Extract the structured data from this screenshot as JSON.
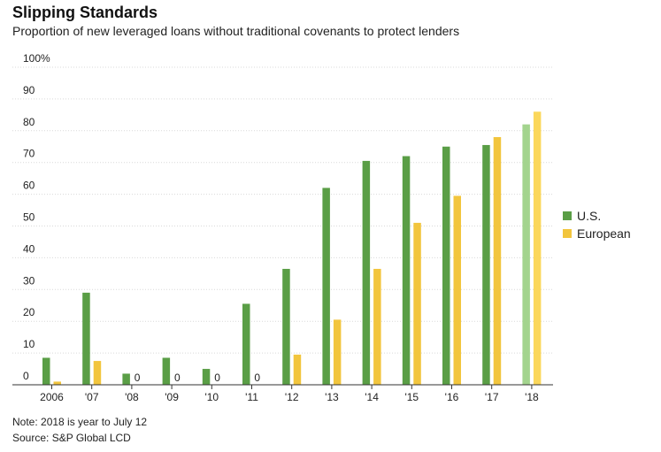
{
  "header": {
    "title": "Slipping Standards",
    "subtitle": "Proportion of new leveraged loans without traditional covenants to protect lenders"
  },
  "footer": {
    "note": "Note: 2018 is year to July 12",
    "source": "Source: S&P Global LCD"
  },
  "chart_data": {
    "type": "bar",
    "categories": [
      "2006",
      "'07",
      "'08",
      "'09",
      "'10",
      "'11",
      "'12",
      "'13",
      "'14",
      "'15",
      "'16",
      "'17",
      "'18"
    ],
    "series": [
      {
        "name": "U.S.",
        "color": "#5a9e46",
        "values": [
          8.5,
          29,
          3.5,
          8.5,
          5,
          25.5,
          36.5,
          62,
          70.5,
          72,
          75,
          75.5,
          82
        ]
      },
      {
        "name": "European",
        "color": "#f2c53d",
        "values": [
          1,
          7.5,
          0,
          0,
          0,
          0,
          9.5,
          20.5,
          36.5,
          51,
          59.5,
          78,
          86
        ]
      }
    ],
    "highlight_last_category_colors": {
      "U.S.": "#a3d48e",
      "European": "#fbd75b"
    },
    "zero_labels": "0",
    "ylim": [
      0,
      100
    ],
    "yticks": [
      0,
      10,
      20,
      30,
      40,
      50,
      60,
      70,
      80,
      90,
      100
    ],
    "top_tick_label": "100%",
    "grid": true,
    "legend_position": "right"
  }
}
